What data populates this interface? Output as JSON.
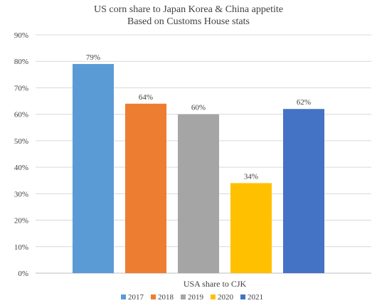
{
  "chart_data": {
    "type": "bar",
    "title": "US corn share to Japan Korea & China appetite",
    "subtitle": "Based on Customs House stats",
    "xlabel": "USA share to CJK",
    "ylabel": "",
    "ylim": [
      0,
      90
    ],
    "yticks": [
      "0%",
      "10%",
      "20%",
      "30%",
      "40%",
      "50%",
      "60%",
      "70%",
      "80%",
      "90%"
    ],
    "grid": true,
    "legend_position": "bottom",
    "categories": [
      "USA share to CJK"
    ],
    "series": [
      {
        "name": "2017",
        "value": 79,
        "label": "79%",
        "color": "#5b9bd5"
      },
      {
        "name": "2018",
        "value": 64,
        "label": "64%",
        "color": "#ed7d31"
      },
      {
        "name": "2019",
        "value": 60,
        "label": "60%",
        "color": "#a5a5a5"
      },
      {
        "name": "2020",
        "value": 34,
        "label": "34%",
        "color": "#ffc000"
      },
      {
        "name": "2021",
        "value": 62,
        "label": "62%",
        "color": "#4472c4"
      }
    ]
  }
}
